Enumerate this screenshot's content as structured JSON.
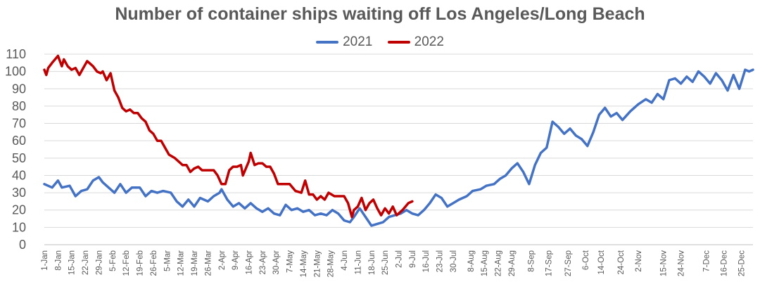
{
  "chart_data": {
    "type": "line",
    "title": "Number of container ships waiting off Los Angeles/Long Beach",
    "xlabel": "",
    "ylabel": "",
    "ylim": [
      0,
      110
    ],
    "yticks": [
      0,
      10,
      20,
      30,
      40,
      50,
      60,
      70,
      80,
      90,
      100,
      110
    ],
    "grid": "horizontal",
    "legend_position": "top",
    "x_unit": "day of year (1 = 1-Jan)",
    "x_tick_labels": [
      "1-Jan",
      "8-Jan",
      "15-Jan",
      "22-Jan",
      "29-Jan",
      "5-Feb",
      "12-Feb",
      "19-Feb",
      "26-Feb",
      "5-Mar",
      "12-Mar",
      "19-Mar",
      "26-Mar",
      "2-Apr",
      "9-Apr",
      "16-Apr",
      "23-Apr",
      "30-Apr",
      "7-May",
      "14-May",
      "21-May",
      "28-May",
      "4-Jun",
      "11-Jun",
      "18-Jun",
      "25-Jun",
      "2-Jul",
      "9-Jul",
      "16-Jul",
      "23-Jul",
      "30-Jul",
      "8-Aug",
      "15-Aug",
      "22-Aug",
      "29-Aug",
      "8-Sep",
      "17-Sep",
      "27-Sep",
      "6-Oct",
      "14-Oct",
      "24-Oct",
      "2-Nov",
      "15-Nov",
      "24-Nov",
      "7-Dec",
      "16-Dec",
      "25-Dec"
    ],
    "x_tick_days": [
      1,
      8,
      15,
      22,
      29,
      36,
      43,
      50,
      57,
      64,
      71,
      78,
      85,
      92,
      99,
      106,
      113,
      120,
      127,
      134,
      141,
      148,
      155,
      162,
      169,
      176,
      183,
      190,
      197,
      204,
      211,
      220,
      227,
      234,
      241,
      251,
      260,
      270,
      279,
      287,
      297,
      306,
      319,
      328,
      341,
      350,
      359
    ],
    "series": [
      {
        "name": "2021",
        "color": "#4472C4",
        "x": [
          1,
          5,
          8,
          10,
          14,
          17,
          20,
          23,
          26,
          29,
          31,
          34,
          37,
          40,
          43,
          46,
          50,
          53,
          56,
          59,
          62,
          66,
          69,
          72,
          75,
          78,
          81,
          85,
          88,
          91,
          92,
          95,
          98,
          101,
          104,
          107,
          110,
          113,
          116,
          119,
          122,
          125,
          128,
          131,
          134,
          137,
          140,
          143,
          146,
          149,
          152,
          155,
          158,
          160,
          163,
          166,
          169,
          172,
          175,
          178,
          181,
          184,
          187,
          190,
          193,
          196,
          199,
          202,
          205,
          208,
          211,
          214,
          218,
          221,
          225,
          228,
          232,
          235,
          238,
          241,
          244,
          247,
          250,
          253,
          256,
          259,
          262,
          265,
          268,
          271,
          274,
          277,
          280,
          283,
          286,
          289,
          292,
          295,
          298,
          302,
          306,
          310,
          313,
          316,
          319,
          322,
          325,
          328,
          331,
          334,
          337,
          340,
          343,
          346,
          349,
          352,
          355,
          358,
          361,
          363,
          365
        ],
        "y": [
          35,
          33,
          37,
          33,
          34,
          28,
          31,
          32,
          37,
          39,
          36,
          33,
          30,
          35,
          30,
          33,
          33,
          28,
          31,
          30,
          31,
          30,
          25,
          22,
          26,
          22,
          27,
          25,
          28,
          30,
          32,
          26,
          22,
          24,
          21,
          24,
          21,
          19,
          21,
          18,
          17,
          23,
          20,
          21,
          19,
          20,
          17,
          18,
          17,
          20,
          18,
          14,
          13,
          16,
          21,
          16,
          11,
          12,
          13,
          16,
          17,
          18,
          20,
          18,
          17,
          20,
          24,
          29,
          27,
          22,
          24,
          26,
          28,
          31,
          32,
          34,
          35,
          38,
          40,
          44,
          47,
          42,
          35,
          46,
          53,
          56,
          71,
          68,
          64,
          67,
          63,
          61,
          57,
          65,
          75,
          79,
          74,
          76,
          72,
          77,
          81,
          84,
          82,
          87,
          84,
          95,
          96,
          93,
          97,
          94,
          100,
          97,
          93,
          99,
          95,
          89,
          98,
          90,
          101,
          100,
          101
        ]
      },
      {
        "name": "2022",
        "color": "#C00000",
        "x": [
          1,
          2,
          3,
          5,
          8,
          10,
          11,
          13,
          15,
          17,
          19,
          21,
          23,
          26,
          28,
          30,
          31,
          33,
          35,
          37,
          39,
          41,
          43,
          45,
          47,
          49,
          51,
          53,
          55,
          57,
          59,
          61,
          63,
          65,
          68,
          70,
          72,
          74,
          76,
          78,
          80,
          82,
          85,
          88,
          90,
          92,
          94,
          96,
          98,
          100,
          102,
          103,
          106,
          107,
          109,
          111,
          113,
          115,
          117,
          119,
          121,
          123,
          125,
          127,
          130,
          133,
          135,
          137,
          139,
          141,
          143,
          145,
          147,
          150,
          153,
          155,
          157,
          159,
          160,
          162,
          164,
          166,
          168,
          170,
          172,
          174,
          176,
          178,
          180,
          182,
          185,
          188,
          190
        ],
        "y": [
          101,
          98,
          102,
          105,
          109,
          103,
          107,
          103,
          101,
          102,
          98,
          102,
          106,
          103,
          100,
          99,
          100,
          95,
          99,
          89,
          85,
          79,
          77,
          78,
          76,
          76,
          73,
          71,
          66,
          64,
          60,
          60,
          56,
          52,
          50,
          48,
          46,
          46,
          42,
          44,
          45,
          43,
          43,
          43,
          40,
          35,
          35,
          43,
          45,
          45,
          46,
          40,
          48,
          53,
          46,
          47,
          47,
          45,
          45,
          41,
          35,
          35,
          35,
          35,
          31,
          30,
          37,
          29,
          29,
          26,
          28,
          26,
          30,
          28,
          28,
          28,
          24,
          16,
          20,
          22,
          27,
          20,
          24,
          26,
          21,
          17,
          21,
          18,
          22,
          17,
          20,
          24,
          25
        ]
      }
    ]
  }
}
